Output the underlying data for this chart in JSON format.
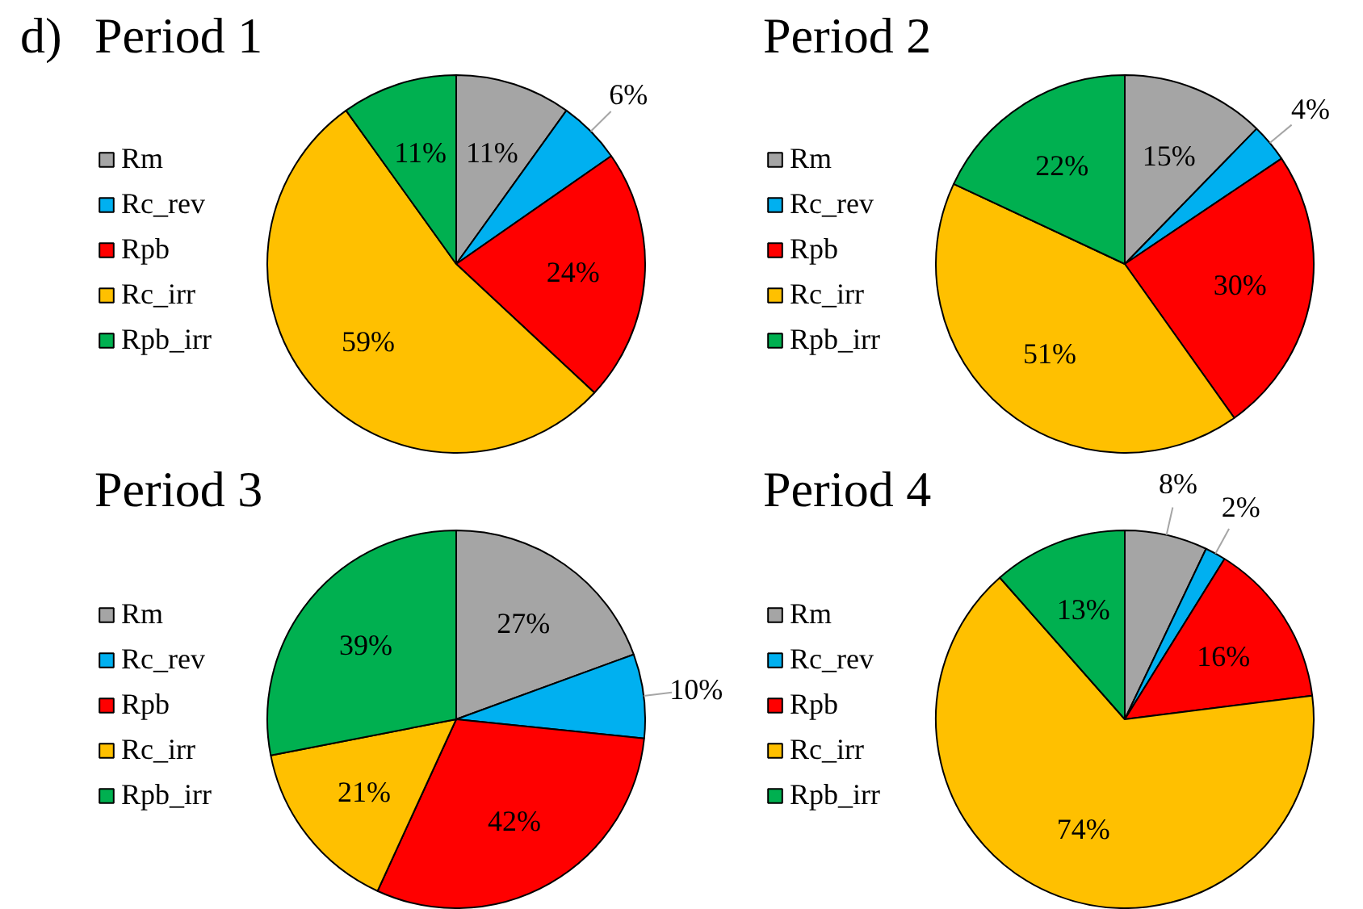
{
  "chart_data": [
    {
      "type": "pie",
      "title": "Period 1",
      "annotations": [
        "d)"
      ],
      "categories": [
        "Rm",
        "Rc_rev",
        "Rpb",
        "Rc_irr",
        "Rpb_irr"
      ],
      "values": [
        11,
        6,
        24,
        59,
        11
      ],
      "colors": [
        "#a5a5a5",
        "#00b0f0",
        "#ff0000",
        "#ffc000",
        "#00b050"
      ],
      "value_labels": [
        "11%",
        "6%",
        "24%",
        "59%",
        "11%"
      ],
      "legend": "left"
    },
    {
      "type": "pie",
      "title": "Period 2",
      "categories": [
        "Rm",
        "Rc_rev",
        "Rpb",
        "Rc_irr",
        "Rpb_irr"
      ],
      "values": [
        15,
        4,
        30,
        51,
        22
      ],
      "colors": [
        "#a5a5a5",
        "#00b0f0",
        "#ff0000",
        "#ffc000",
        "#00b050"
      ],
      "value_labels": [
        "15%",
        "4%",
        "30%",
        "51%",
        "22%"
      ],
      "legend": "left"
    },
    {
      "type": "pie",
      "title": "Period 3",
      "categories": [
        "Rm",
        "Rc_rev",
        "Rpb",
        "Rc_irr",
        "Rpb_irr"
      ],
      "values": [
        27,
        10,
        42,
        21,
        39
      ],
      "colors": [
        "#a5a5a5",
        "#00b0f0",
        "#ff0000",
        "#ffc000",
        "#00b050"
      ],
      "value_labels": [
        "27%",
        "10%",
        "42%",
        "21%",
        "39%"
      ],
      "legend": "left"
    },
    {
      "type": "pie",
      "title": "Period 4",
      "categories": [
        "Rm",
        "Rc_rev",
        "Rpb",
        "Rc_irr",
        "Rpb_irr"
      ],
      "values": [
        8,
        2,
        16,
        74,
        13
      ],
      "colors": [
        "#a5a5a5",
        "#00b0f0",
        "#ff0000",
        "#ffc000",
        "#00b050"
      ],
      "value_labels": [
        "8%",
        "2%",
        "16%",
        "74%",
        "13%"
      ],
      "legend": "left"
    }
  ]
}
